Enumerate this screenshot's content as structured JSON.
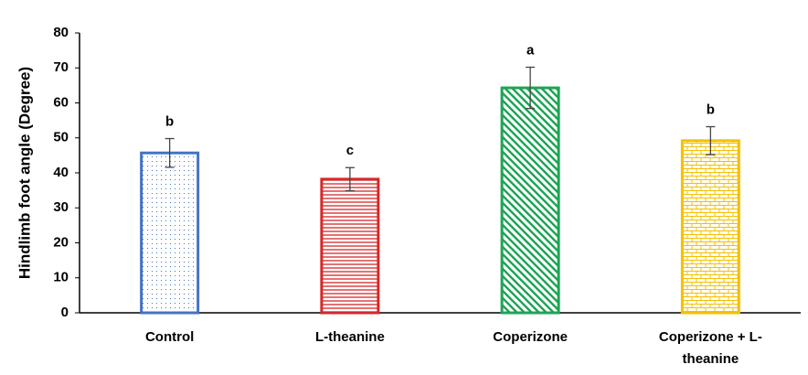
{
  "chart_data": {
    "type": "bar",
    "y_label": "Hindlimb foot angle (Degree)",
    "categories": [
      "Control",
      "L-theanine",
      "Coperizone",
      "Coperizone + L-theanine"
    ],
    "values": [
      45.7,
      38.2,
      64.3,
      49.2
    ],
    "errors": [
      4.1,
      3.3,
      5.9,
      4.0
    ],
    "annotations": [
      "b",
      "c",
      "a",
      "b"
    ],
    "colors": [
      "#4472c4",
      "#d62728",
      "#1fa456",
      "#f5c000"
    ],
    "patterns": [
      "dots",
      "horizontal",
      "diagonal",
      "brick"
    ],
    "ylim": [
      0,
      80
    ],
    "yticks": [
      0,
      10,
      20,
      30,
      40,
      50,
      60,
      70,
      80
    ],
    "grid": false
  }
}
